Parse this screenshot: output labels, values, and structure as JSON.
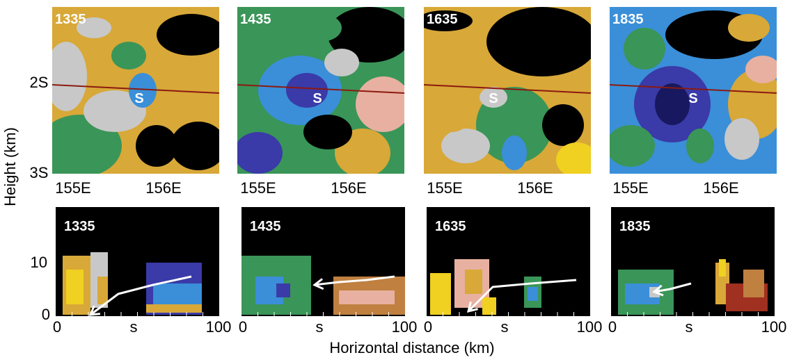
{
  "top_panels": [
    {
      "time": "1335",
      "marker": "S"
    },
    {
      "time": "1435",
      "marker": "S"
    },
    {
      "time": "1635",
      "marker": "S"
    },
    {
      "time": "1835",
      "marker": "S"
    }
  ],
  "top_axes": {
    "y_ticks": [
      "2S",
      "3S"
    ],
    "x_ticks": [
      "155E",
      "156E"
    ]
  },
  "bottom_panels": [
    {
      "time": "1335"
    },
    {
      "time": "1435"
    },
    {
      "time": "1635"
    },
    {
      "time": "1835"
    }
  ],
  "bottom_axes": {
    "y_ticks": [
      0,
      10
    ],
    "x_ticks": [
      0,
      "s",
      100
    ]
  },
  "y_label": "Height (km)",
  "x_label": "Horizontal distance (km)"
}
